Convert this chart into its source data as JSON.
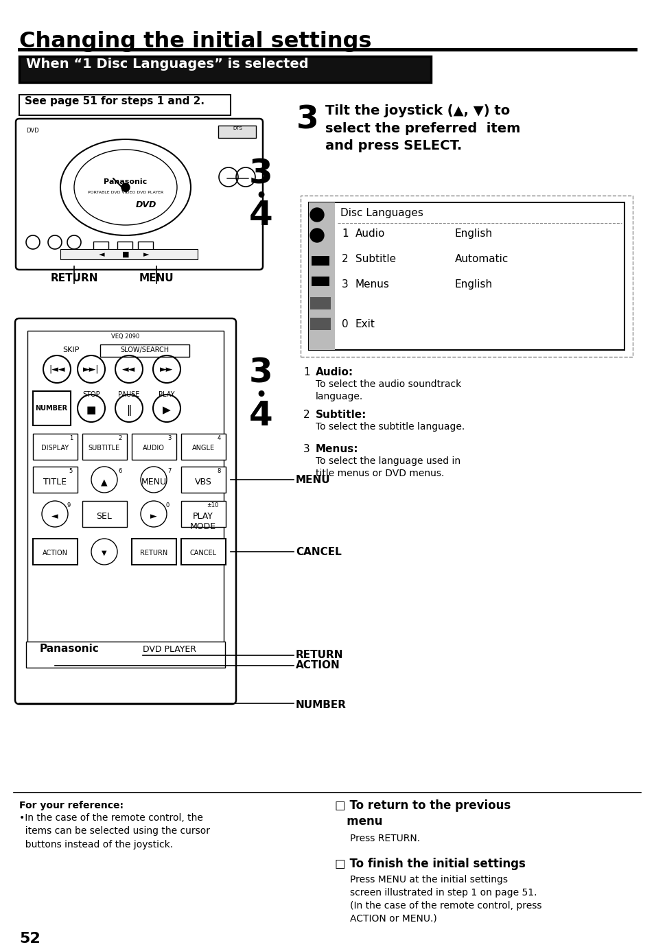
{
  "title": "Changing the initial settings",
  "section_header": "When “1 Disc Languages” is selected",
  "bg_color": "#ffffff",
  "text_color": "#000000",
  "step3_instruction": "Tilt the joystick (▲, ▼) to\nselect the preferred  item\nand press SELECT.",
  "see_page": "See page 51 for steps 1 and 2.",
  "menu_title": "Disc Languages",
  "menu_items": [
    {
      "num": "1",
      "label": "Audio",
      "value": "English"
    },
    {
      "num": "2",
      "label": "Subtitle",
      "value": "Automatic"
    },
    {
      "num": "3",
      "label": "Menus",
      "value": "English"
    },
    {
      "num": "0",
      "label": "Exit",
      "value": ""
    }
  ],
  "desc_1_title": "Audio:",
  "desc_1_text": "To select the audio soundtrack\nlanguage.",
  "desc_2_title": "Subtitle:",
  "desc_2_text": "To select the subtitle language.",
  "desc_3_title": "Menus:",
  "desc_3_text": "To select the language used in\ntitle menus or DVD menus.",
  "ref_title": "For your reference:",
  "ref_text": "•In the case of the remote control, the\n  items can be selected using the cursor\n  buttons instead of the joystick.",
  "return_title": "□ To return to the previous\n   menu",
  "return_text": "Press RETURN.",
  "finish_title": "□ To finish the initial settings",
  "finish_text": "Press MENU at the initial settings\nscreen illustrated in step 1 on page 51.\n(In the case of the remote control, press\nACTION or MENU.)",
  "page_num": "52"
}
